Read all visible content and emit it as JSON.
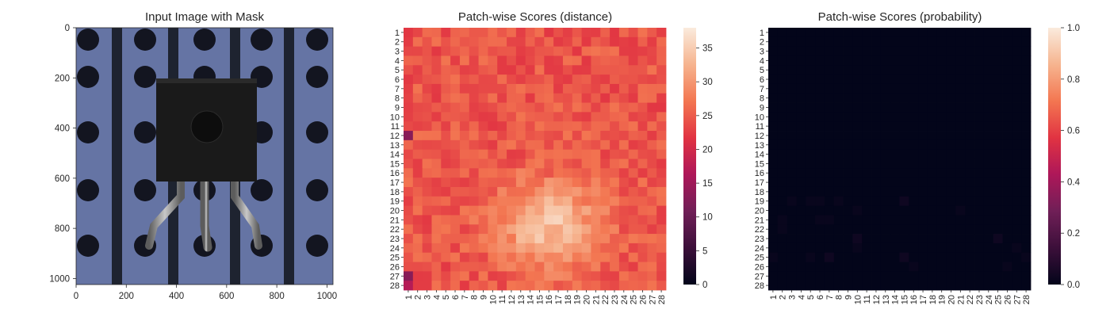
{
  "chart_data": [
    {
      "type": "image",
      "title": "Input Image with Mask",
      "xticks": [
        "0",
        "200",
        "400",
        "600",
        "800",
        "1000"
      ],
      "yticks": [
        "0",
        "200",
        "400",
        "600",
        "800",
        "1000"
      ],
      "xlim": [
        0,
        1024
      ],
      "ylim": [
        1024,
        0
      ],
      "image_subject": "black transistor package with three bent metal legs on a blue perforated circuit board"
    },
    {
      "type": "heatmap",
      "title": "Patch-wise Scores (distance)",
      "rows": [
        "1",
        "2",
        "3",
        "4",
        "5",
        "6",
        "7",
        "8",
        "9",
        "10",
        "11",
        "12",
        "13",
        "14",
        "15",
        "16",
        "17",
        "18",
        "19",
        "20",
        "21",
        "22",
        "23",
        "24",
        "25",
        "26",
        "27",
        "28"
      ],
      "cols": [
        "1",
        "2",
        "3",
        "4",
        "5",
        "6",
        "7",
        "8",
        "9",
        "10",
        "11",
        "12",
        "13",
        "14",
        "15",
        "16",
        "17",
        "18",
        "19",
        "20",
        "21",
        "22",
        "23",
        "24",
        "25",
        "26",
        "27",
        "28"
      ],
      "vmin": 0,
      "vmax": 38,
      "colorbar_ticks": [
        "0",
        "5",
        "10",
        "15",
        "20",
        "25",
        "30",
        "35"
      ],
      "colorbar_values": [
        0,
        5,
        10,
        15,
        20,
        25,
        30,
        35
      ],
      "value_range_shown": [
        11,
        37
      ],
      "pattern": "mostly 22-29; brighter (30-37) in the lower-center region around row 19-25, col 14-20; darker spots (12-20) near left edge rows 12 and 27"
    },
    {
      "type": "heatmap",
      "title": "Patch-wise Scores (probability)",
      "rows": [
        "1",
        "2",
        "3",
        "4",
        "5",
        "6",
        "7",
        "8",
        "9",
        "10",
        "11",
        "12",
        "13",
        "14",
        "15",
        "16",
        "17",
        "18",
        "19",
        "20",
        "21",
        "22",
        "23",
        "24",
        "25",
        "26",
        "27",
        "28"
      ],
      "cols": [
        "1",
        "2",
        "3",
        "4",
        "5",
        "6",
        "7",
        "8",
        "9",
        "10",
        "11",
        "12",
        "13",
        "14",
        "15",
        "16",
        "17",
        "18",
        "19",
        "20",
        "21",
        "22",
        "23",
        "24",
        "25",
        "26",
        "27",
        "28"
      ],
      "vmin": 0.0,
      "vmax": 1.0,
      "colorbar_ticks": [
        "0.0",
        "0.2",
        "0.4",
        "0.6",
        "0.8",
        "1.0"
      ],
      "colorbar_values": [
        0.0,
        0.2,
        0.4,
        0.6,
        0.8,
        1.0
      ],
      "pattern": "nearly all cells approx 0.0; faint values up to ~0.03 near rows 19-25"
    }
  ],
  "colors": {
    "cmap_rocket": [
      "#03051a",
      "#3c0f3a",
      "#701f57",
      "#ae1759",
      "#e13342",
      "#f37651",
      "#f6b48f",
      "#faebdd"
    ],
    "image_board": "#6574a4",
    "image_hole": "#131520",
    "image_strip": "#1e2330",
    "image_body": "#1a1a1a",
    "image_leg": "#9a9a9a"
  }
}
